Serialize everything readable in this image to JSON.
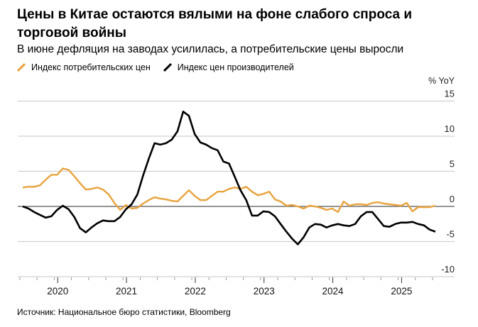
{
  "title": "Цены в Китае остаются вялыми на фоне слабого спроса и торговой войны",
  "subtitle": "В июне дефляция на заводах усилилась, а потребительские цены выросли",
  "source": "Источник: Национальное бюро статистики, Bloomberg",
  "chart_data": {
    "type": "line",
    "ylabel": "% YoY",
    "ylim": [
      -10,
      15
    ],
    "yticks": [
      "15",
      "10",
      "5",
      "0",
      "-5",
      "-10"
    ],
    "ytick_values": [
      15,
      10,
      5,
      0,
      -5,
      -10
    ],
    "xticks": [
      "2020",
      "2021",
      "2022",
      "2023",
      "2024",
      "2025"
    ],
    "x_start": "2019-06",
    "x_end": "2025-06",
    "grid": true,
    "legend_position": "top-left",
    "series": [
      {
        "name": "Индекс потребительских цен",
        "color": "#E8A33D",
        "values": [
          2.7,
          2.8,
          2.8,
          3.0,
          3.8,
          4.5,
          4.5,
          5.4,
          5.2,
          4.3,
          3.3,
          2.4,
          2.5,
          2.7,
          2.4,
          1.7,
          0.5,
          -0.5,
          0.2,
          -0.3,
          -0.2,
          0.4,
          0.9,
          1.3,
          1.1,
          1.0,
          0.8,
          0.7,
          1.5,
          2.3,
          1.5,
          0.9,
          0.9,
          1.5,
          2.1,
          2.1,
          2.5,
          2.7,
          2.5,
          2.8,
          2.1,
          1.6,
          1.8,
          2.1,
          1.0,
          0.7,
          0.1,
          0.2,
          0.0,
          -0.3,
          0.1,
          0.0,
          -0.2,
          -0.5,
          -0.3,
          -0.8,
          0.7,
          0.1,
          0.3,
          0.3,
          0.2,
          0.5,
          0.6,
          0.4,
          0.3,
          0.2,
          0.1,
          0.5,
          -0.7,
          -0.1,
          -0.1,
          -0.1,
          0.1
        ]
      },
      {
        "name": "Индекс цен производителей",
        "color": "#000000",
        "values": [
          0.0,
          -0.3,
          -0.8,
          -1.2,
          -1.6,
          -1.4,
          -0.5,
          0.1,
          -0.4,
          -1.5,
          -3.1,
          -3.7,
          -3.0,
          -2.4,
          -2.0,
          -2.1,
          -2.1,
          -1.5,
          -0.4,
          0.3,
          1.7,
          4.4,
          6.8,
          9.0,
          8.8,
          9.0,
          9.5,
          10.7,
          13.5,
          12.9,
          10.3,
          9.1,
          8.8,
          8.3,
          8.0,
          6.4,
          6.1,
          4.2,
          2.3,
          0.9,
          -1.3,
          -1.3,
          -0.7,
          -0.8,
          -1.4,
          -2.5,
          -3.6,
          -4.6,
          -5.4,
          -4.4,
          -3.0,
          -2.5,
          -2.6,
          -3.0,
          -2.7,
          -2.5,
          -2.7,
          -2.8,
          -2.5,
          -1.4,
          -0.8,
          -0.8,
          -1.8,
          -2.8,
          -2.9,
          -2.5,
          -2.3,
          -2.3,
          -2.2,
          -2.5,
          -2.7,
          -3.3,
          -3.6
        ]
      }
    ]
  }
}
